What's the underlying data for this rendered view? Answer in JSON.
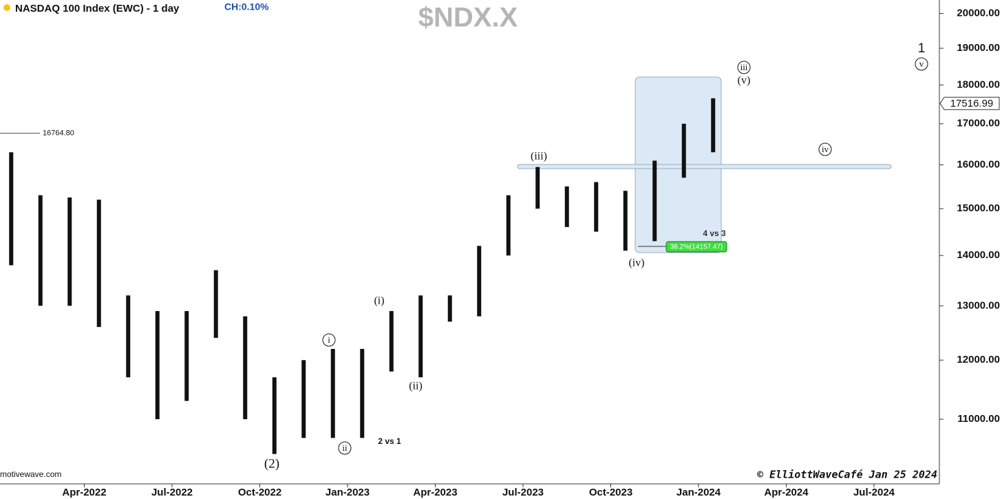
{
  "chart_data": {
    "type": "range-bar",
    "title": "NASDAQ 100 Index (EWC) - 1 day",
    "change": "CH:0.10%",
    "symbol": "$NDX.X",
    "source": "motivewave.com",
    "credit": "© ElliottWaveCafé Jan 25 2024",
    "log_scale": true,
    "color": "#111111",
    "x": [
      "Jan-2022",
      "Feb-2022",
      "Mar-2022",
      "Apr-2022",
      "May-2022",
      "Jun-2022",
      "Jul-2022",
      "Aug-2022",
      "Sep-2022",
      "Oct-2022",
      "Nov-2022",
      "Dec-2022",
      "Jan-2023",
      "Feb-2023",
      "Mar-2023",
      "Apr-2023",
      "May-2023",
      "Jun-2023",
      "Jul-2023",
      "Aug-2023",
      "Sep-2023",
      "Oct-2023",
      "Nov-2023",
      "Dec-2023",
      "Jan-2024"
    ],
    "series": [
      {
        "name": "High",
        "values": [
          16300,
          15300,
          15250,
          15200,
          13200,
          12900,
          12900,
          13700,
          12800,
          11700,
          12000,
          12200,
          12200,
          12900,
          13200,
          13200,
          14200,
          15300,
          15950,
          15500,
          15600,
          15400,
          16100,
          17000,
          17650
        ]
      },
      {
        "name": "Low",
        "values": [
          13800,
          13000,
          13000,
          12600,
          11700,
          11000,
          11300,
          12400,
          11000,
          10450,
          10700,
          10700,
          10700,
          11800,
          11700,
          12700,
          12800,
          14000,
          15000,
          14600,
          14500,
          14100,
          14300,
          15700,
          16300
        ]
      }
    ],
    "xlim": [
      "Jan-2022",
      "Aug-2024"
    ],
    "xticks": [
      "Apr-2022",
      "Jul-2022",
      "Oct-2022",
      "Jan-2023",
      "Apr-2023",
      "Jul-2023",
      "Oct-2023",
      "Jan-2024",
      "Apr-2024",
      "Jul-2024"
    ],
    "ylim": [
      10000,
      20400
    ],
    "yticks": [
      {
        "value": 11000,
        "label": "11000.00"
      },
      {
        "value": 12000,
        "label": "12000.00"
      },
      {
        "value": 13000,
        "label": "13000.00"
      },
      {
        "value": 14000,
        "label": "14000.00"
      },
      {
        "value": 15000,
        "label": "15000.00"
      },
      {
        "value": 16000,
        "label": "16000.00"
      },
      {
        "value": 17000,
        "label": "17000.00"
      },
      {
        "value": 18000,
        "label": "18000.00"
      },
      {
        "value": 19000,
        "label": "19000.00"
      },
      {
        "value": 20000,
        "label": "20000.00"
      }
    ],
    "last_price": {
      "value": 17516.99,
      "label": "17516.99"
    },
    "reference_line": {
      "value": 16764.8,
      "label": "16764.80"
    },
    "annotations": [
      "(2)",
      "i",
      "ii",
      "(i)",
      "(ii)",
      "(iii)",
      "(iv)",
      "iii",
      "(v)",
      "iv",
      "1",
      "v",
      "2 vs 1",
      "4 vs 3",
      "38.2%(14157.47)"
    ]
  }
}
